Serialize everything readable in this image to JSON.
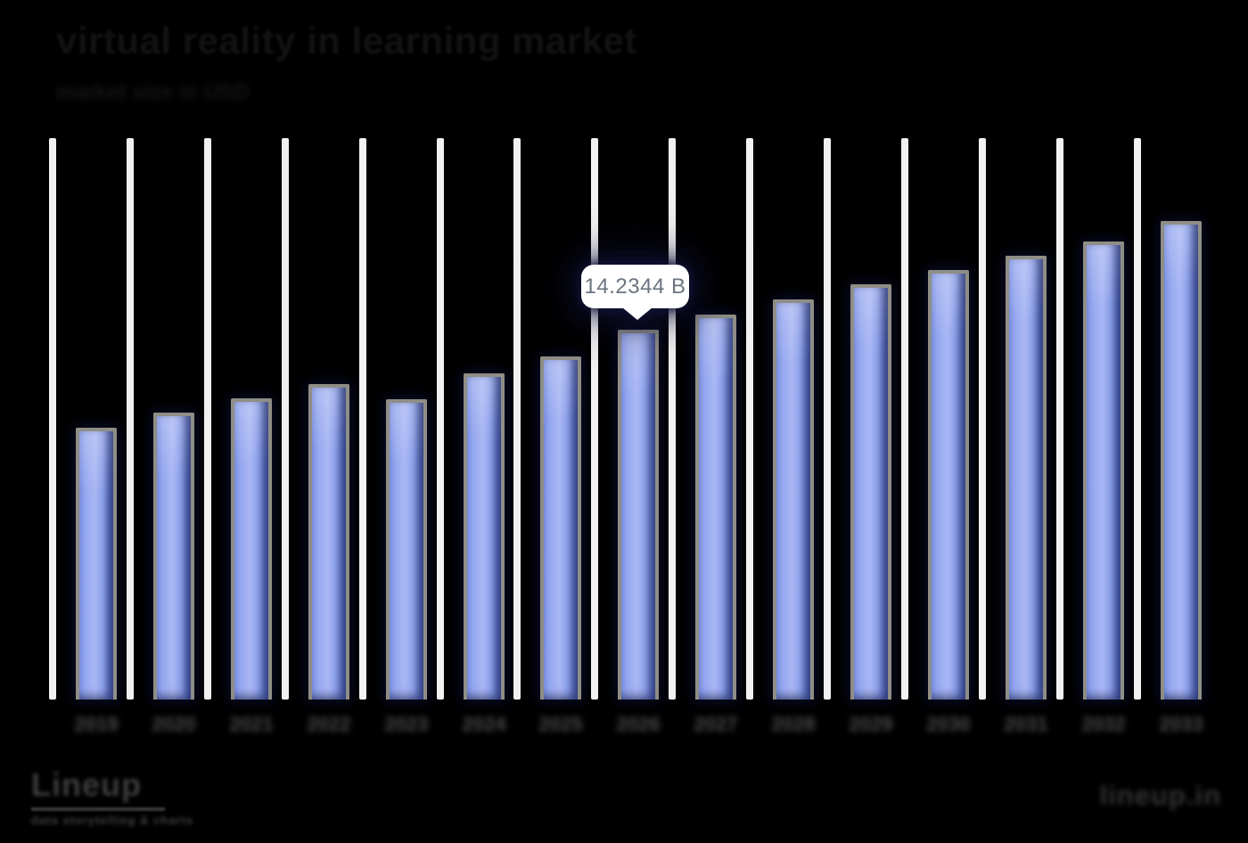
{
  "_notes": "Source screenshot: chart exported on black background. Title is near-black on black (barely legible); subtitle, x-axis year labels, logo tagline and footer URL are blurred/illegible in the source — strings below are best-effort placeholders matching blob shapes. Bar values (except the tooltip bar) are estimated from pixel heights scaled to the visible tooltip value.",
  "title": {
    "text": "virtual reality in learning market"
  },
  "subtitle": {
    "text": "market size in USD",
    "illegible": true
  },
  "tooltip": {
    "value_label": "14.2344 B",
    "target_bar_index": 7
  },
  "footer": {
    "logo_text": "Lineup",
    "logo_tagline": "data storytelling & charts",
    "logo_tagline_illegible": true,
    "site_text": "lineup.in",
    "site_text_illegible": true
  },
  "colors": {
    "background": "#000000",
    "bar_fill_light": "#a9b6f4",
    "bar_fill_mid": "#8ea3ee",
    "bar_fill_dark": "#5f76dc",
    "bar_border": "#8f8e86",
    "gridline": "#f1f1f1",
    "tooltip_bg": "#ffffff",
    "tooltip_text": "#6a7380",
    "axis_label": "#4b4b4b",
    "title_text": "#121212"
  },
  "chart_data": {
    "type": "bar",
    "title": "virtual reality in learning market",
    "xlabel": "",
    "ylabel": "",
    "unit": "B (billions USD)",
    "ylim": [
      0,
      20
    ],
    "grid": "vertical white lines, one left of each bar",
    "legend": "none",
    "x_labels_blurred_illegible": true,
    "categories": [
      "2019",
      "2020",
      "2021",
      "2022",
      "2023",
      "2024",
      "2025",
      "2026",
      "2027",
      "2028",
      "2029",
      "2030",
      "2031",
      "2032",
      "2033"
    ],
    "values": [
      10.46,
      11.04,
      11.59,
      12.14,
      11.56,
      12.55,
      13.21,
      14.2344,
      14.82,
      15.4,
      15.98,
      16.53,
      17.08,
      17.63,
      18.42
    ],
    "values_estimated_from_pixels": true,
    "tooltip_exact_value": {
      "index": 7,
      "label": "14.2344 B"
    }
  }
}
